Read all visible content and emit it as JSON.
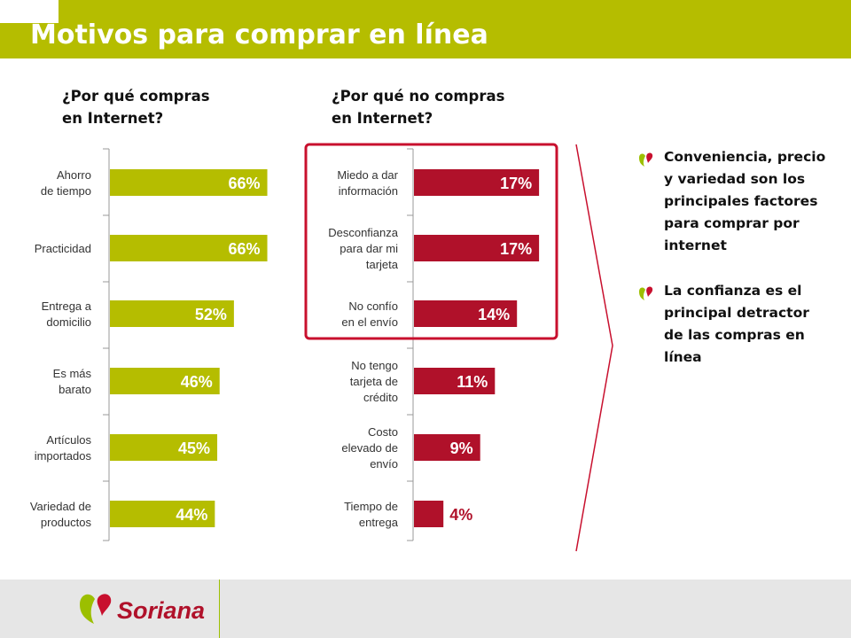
{
  "page": {
    "title": "Motivos para comprar en línea"
  },
  "bullets": [
    "Conveniencia, precio y variedad son los principales factores para comprar por internet",
    "La confianza  es el principal detractor de las compras en línea"
  ],
  "footer": {
    "brand": "Soriana"
  },
  "colors": {
    "green": "#b5bd00",
    "red": "#b0112a",
    "highlight_box": "#c8102e"
  },
  "chart_data": [
    {
      "type": "bar",
      "orientation": "horizontal",
      "title": "¿Por qué compras\nen Internet?",
      "categories": [
        "Ahorro\nde tiempo",
        "Practicidad",
        "Entrega a\ndomicilio",
        "Es más\nbarato",
        "Artículos\nimportados",
        "Variedad de\nproductos"
      ],
      "values": [
        66,
        66,
        52,
        46,
        45,
        44
      ],
      "labels": [
        "66%",
        "66%",
        "52%",
        "46%",
        "45%",
        "44%"
      ],
      "unit": "%",
      "color": "#b5bd00",
      "xlim": [
        0,
        100
      ],
      "grid": false
    },
    {
      "type": "bar",
      "orientation": "horizontal",
      "title": "¿Por qué no compras\nen Internet?",
      "categories": [
        "Miedo a dar\ninformación",
        "Desconfianza\npara dar mi\ntarjeta",
        "No confío\nen el envío",
        "No tengo\ntarjeta de\ncrédito",
        "Costo\nelevado de\nenvío",
        "Tiempo de\nentrega"
      ],
      "values": [
        17,
        17,
        14,
        11,
        9,
        4
      ],
      "labels": [
        "17%",
        "17%",
        "14%",
        "11%",
        "9%",
        "4%"
      ],
      "unit": "%",
      "color": "#b0112a",
      "xlim": [
        0,
        25
      ],
      "grid": false,
      "highlighted_categories": [
        "Miedo a dar\ninformación",
        "Desconfianza\npara dar mi\ntarjeta",
        "No confío\nen el envío"
      ]
    }
  ]
}
